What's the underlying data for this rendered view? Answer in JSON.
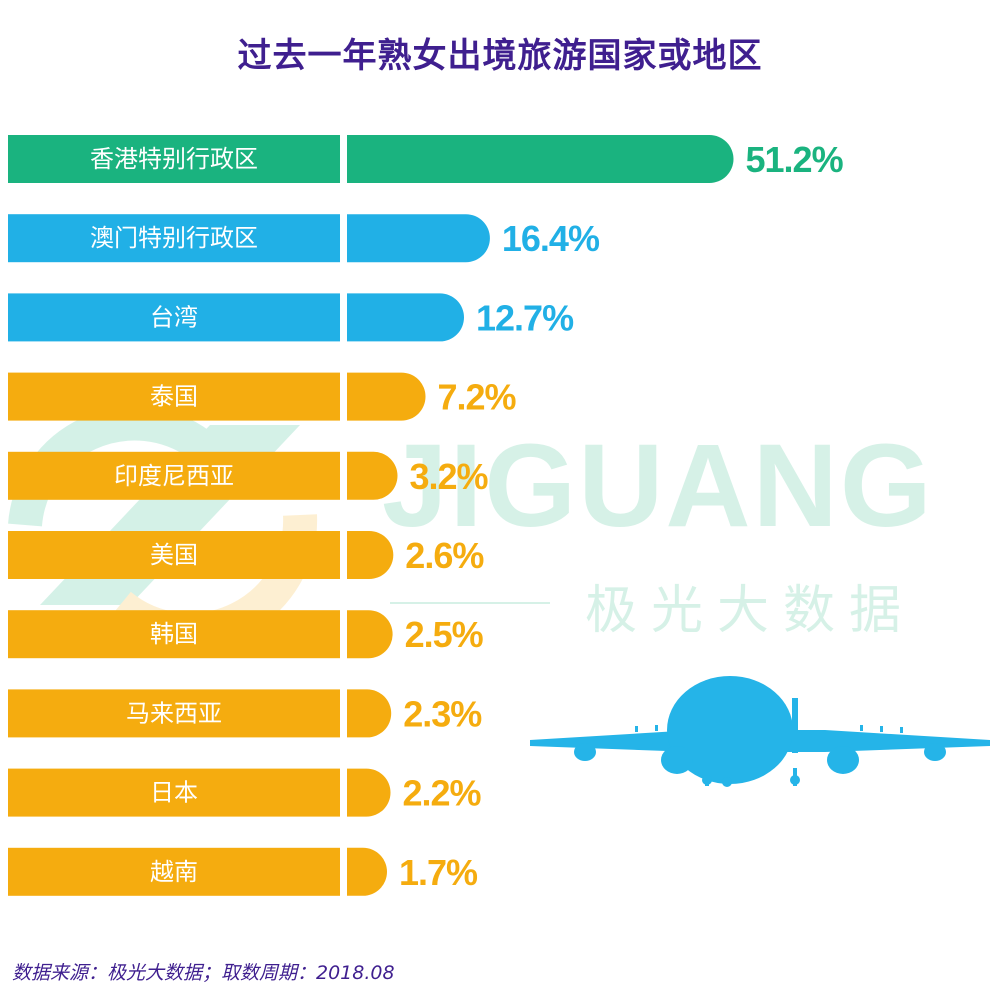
{
  "watermark": {
    "text": "JIGUANG",
    "subtext": "极光大数据"
  },
  "colors": {
    "title": "#3f1f8f",
    "top": "#1ab37f",
    "mid": "#21b0e6",
    "rest": "#f5ac0f",
    "plane": "#25b4e8"
  },
  "source": "数据来源：极光大数据；取数周期：2018.08",
  "chart_data": {
    "type": "bar",
    "orientation": "horizontal",
    "title": "过去一年熟女出境旅游国家或地区",
    "unit": "%",
    "categories": [
      "香港特别行政区",
      "澳门特别行政区",
      "台湾",
      "泰国",
      "印度尼西亚",
      "美国",
      "韩国",
      "马来西亚",
      "日本",
      "越南"
    ],
    "values": [
      51.2,
      16.4,
      12.7,
      7.2,
      3.2,
      2.6,
      2.5,
      2.3,
      2.2,
      1.7
    ],
    "value_labels": [
      "51.2%",
      "16.4%",
      "12.7%",
      "7.2%",
      "3.2%",
      "2.6%",
      "2.5%",
      "2.3%",
      "2.2%",
      "1.7%"
    ],
    "bar_colors": [
      "#1ab37f",
      "#21b0e6",
      "#21b0e6",
      "#f5ac0f",
      "#f5ac0f",
      "#f5ac0f",
      "#f5ac0f",
      "#f5ac0f",
      "#f5ac0f",
      "#f5ac0f"
    ]
  }
}
